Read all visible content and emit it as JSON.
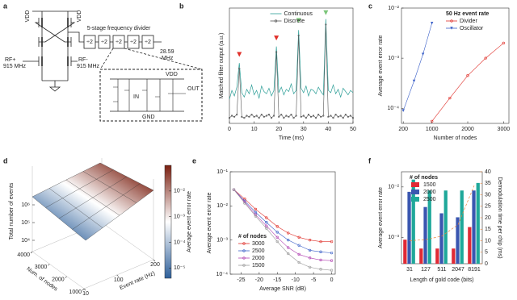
{
  "diagram": {
    "panel_label": "a",
    "vdd": [
      "VDD",
      "VDD"
    ],
    "divider_title": "5-stage frequency divider",
    "stages": [
      "÷2",
      "÷2",
      "÷2",
      "÷2",
      "÷2"
    ],
    "output": [
      "28.59",
      "MHz"
    ],
    "rf_plus": [
      "RF+",
      "915 MHz"
    ],
    "rf_minus": [
      "RF-",
      "915 MHz"
    ],
    "inset": {
      "vdd": "VDD",
      "gnd": "GND",
      "in": "IN",
      "out": "OUT"
    }
  },
  "chart_data": [
    {
      "type": "line",
      "panel_label": "b",
      "xlabel": "Time (ms)",
      "ylabel": "Matched filter output (a.u.)",
      "x": [
        0,
        1,
        2,
        3,
        4,
        5,
        6,
        7,
        8,
        9,
        10,
        11,
        12,
        13,
        14,
        15,
        16,
        17,
        18,
        19,
        20,
        21,
        22,
        23,
        24,
        25,
        26,
        27,
        28,
        29,
        30,
        31,
        32,
        33,
        34,
        35,
        36,
        37,
        38,
        39,
        40,
        41,
        42,
        43,
        44,
        45,
        46,
        47,
        48,
        49,
        50
      ],
      "xlim": [
        0,
        50
      ],
      "xticks": [
        0,
        10,
        20,
        30,
        40,
        50
      ],
      "ylim": [
        0,
        1.05
      ],
      "series": [
        {
          "name": "Continuous",
          "color": "#2a9d96",
          "values": [
            0.22,
            0.3,
            0.25,
            0.33,
            0.55,
            0.28,
            0.24,
            0.31,
            0.27,
            0.35,
            0.26,
            0.3,
            0.23,
            0.34,
            0.29,
            0.27,
            0.32,
            0.25,
            0.3,
            0.7,
            0.28,
            0.33,
            0.26,
            0.31,
            0.29,
            0.36,
            0.27,
            0.3,
            0.85,
            0.32,
            0.28,
            0.34,
            0.25,
            0.31,
            0.3,
            0.27,
            0.33,
            0.29,
            0.26,
            0.95,
            0.3,
            0.28,
            0.35,
            0.27,
            0.31,
            0.24,
            0.32,
            0.29,
            0.26,
            0.3,
            0.28
          ]
        },
        {
          "name": "Discrete",
          "color": "#555555",
          "marker": "o",
          "values": [
            0.05,
            0.07,
            0.06,
            0.08,
            0.5,
            0.06,
            0.05,
            0.07,
            0.06,
            0.08,
            0.06,
            0.07,
            0.05,
            0.08,
            0.06,
            0.07,
            0.08,
            0.05,
            0.07,
            0.65,
            0.06,
            0.08,
            0.05,
            0.07,
            0.06,
            0.08,
            0.05,
            0.07,
            0.8,
            0.06,
            0.07,
            0.05,
            0.08,
            0.06,
            0.07,
            0.05,
            0.08,
            0.06,
            0.07,
            0.9,
            0.06,
            0.07,
            0.05,
            0.08,
            0.06,
            0.07,
            0.05,
            0.08,
            0.06,
            0.07,
            0.05
          ]
        }
      ],
      "markers": [
        {
          "x": 4,
          "y": 0.62,
          "color": "#e0302a"
        },
        {
          "x": 19,
          "y": 0.77,
          "color": "#e0302a"
        },
        {
          "x": 28,
          "y": 0.93,
          "color": "#7cc67a"
        },
        {
          "x": 39,
          "y": 1.0,
          "color": "#7cc67a"
        }
      ],
      "legend": "upper center"
    },
    {
      "type": "line",
      "panel_label": "c",
      "xlabel": "Number of nodes",
      "ylabel": "Average event error rate",
      "xlim": [
        150,
        3150
      ],
      "xticks": [
        200,
        1000,
        2000,
        3000
      ],
      "yscale": "log",
      "ylim": [
        5e-05,
        0.01
      ],
      "yticks": [
        {
          "value": 0.0001,
          "label": "10⁻⁴"
        },
        {
          "value": 0.001,
          "label": "10⁻³"
        },
        {
          "value": 0.01,
          "label": "10⁻²"
        }
      ],
      "series": [
        {
          "name": "Divider",
          "color": "#e0302a",
          "marker": "o",
          "x": [
            1000,
            1500,
            2000,
            2500,
            3000
          ],
          "values": [
            5.5e-05,
            0.00016,
            0.00045,
            0.001,
            0.002
          ]
        },
        {
          "name": "Oscillator",
          "color": "#3a5fc8",
          "marker": "v",
          "x": [
            200,
            500,
            750,
            1000
          ],
          "values": [
            9e-05,
            0.00035,
            0.0012,
            0.005
          ]
        }
      ],
      "legend": {
        "title": "50 Hz event rate",
        "loc": "upper right"
      }
    },
    {
      "type": "surface",
      "panel_label": "d",
      "zlabel": "Total number of events",
      "xlabel": "Num. of nodes",
      "ylabel": "Event rate (Hz)",
      "xlim": [
        1000,
        4000
      ],
      "xticks": [
        1000,
        2000,
        3000,
        4000
      ],
      "ylim": [
        10,
        200
      ],
      "yticks": [
        10,
        100,
        200
      ],
      "zscale": "log",
      "zlim": [
        10000,
        1000000
      ],
      "zticks": [
        {
          "value": 10000,
          "label": "10⁴"
        },
        {
          "value": 100000,
          "label": "10⁵"
        },
        {
          "value": 1000000,
          "label": "10⁶"
        }
      ],
      "colorbar": {
        "label": "Average event error rate",
        "scale": "log",
        "lim": [
          4e-06,
          0.1
        ],
        "ticks": [
          {
            "value": 0.01,
            "label": "10⁻²"
          },
          {
            "value": 0.001,
            "label": "10⁻³"
          },
          {
            "value": 0.0001,
            "label": "10⁻⁴"
          },
          {
            "value": 1e-05,
            "label": "10⁻⁵"
          }
        ],
        "colors": [
          "#2d5f9a",
          "#ffffff",
          "#7a1f10"
        ]
      }
    },
    {
      "type": "line",
      "panel_label": "e",
      "xlabel": "Average SNR (dB)",
      "ylabel": "Average event error rate",
      "x": [
        -27,
        -24,
        -21,
        -18,
        -15,
        -12,
        -9,
        -6,
        -3,
        0
      ],
      "xlim": [
        -28,
        1
      ],
      "xticks": [
        -25,
        -20,
        -15,
        -10,
        -5,
        0
      ],
      "yscale": "log",
      "ylim": [
        0.0001,
        0.1
      ],
      "yticks": [
        {
          "value": 0.0001,
          "label": "10⁻⁴"
        },
        {
          "value": 0.001,
          "label": "10⁻³"
        },
        {
          "value": 0.01,
          "label": "10⁻²"
        },
        {
          "value": 0.1,
          "label": "10⁻¹"
        }
      ],
      "series": [
        {
          "name": "3000",
          "color": "#e0302a",
          "marker": "o",
          "values": [
            0.03,
            0.016,
            0.008,
            0.0045,
            0.0025,
            0.0016,
            0.0012,
            0.001,
            0.0009,
            0.0009
          ]
        },
        {
          "name": "2500",
          "color": "#3a5fc8",
          "marker": "o",
          "values": [
            0.03,
            0.014,
            0.0065,
            0.0033,
            0.0017,
            0.001,
            0.0007,
            0.0005,
            0.00045,
            0.00042
          ]
        },
        {
          "name": "2000",
          "color": "#b040b0",
          "marker": "o",
          "values": [
            0.03,
            0.013,
            0.0055,
            0.0026,
            0.0012,
            0.0006,
            0.00038,
            0.0003,
            0.00026,
            0.00025
          ]
        },
        {
          "name": "1500",
          "color": "#999999",
          "marker": "o",
          "values": [
            0.03,
            0.012,
            0.005,
            0.0022,
            0.0009,
            0.0004,
            0.00022,
            0.00016,
            0.00014,
            0.00013
          ]
        }
      ],
      "legend": {
        "title": "# of nodes",
        "loc": "lower left"
      }
    },
    {
      "type": "bar",
      "panel_label": "f",
      "xlabel": "Length of gold code (bits)",
      "ylabel": "Average event error rate",
      "y2label": "Demodulation time per chip (ms)",
      "categories": [
        "31",
        "127",
        "511",
        "2047",
        "8191"
      ],
      "yscale": "log",
      "ylim": [
        0.0003,
        0.02
      ],
      "yticks": [
        {
          "value": 0.001,
          "label": "10⁻³"
        },
        {
          "value": 0.01,
          "label": "10⁻²"
        }
      ],
      "y2lim": [
        0,
        40
      ],
      "y2ticks": [
        0,
        5,
        10,
        15,
        20,
        25,
        30,
        35,
        40
      ],
      "y2color": "#e8823a",
      "series": [
        {
          "name": "1500",
          "color": "#e02a35",
          "values": [
            0.0009,
            0.0006,
            0.0006,
            0.0006,
            0.0016
          ]
        },
        {
          "name": "2000",
          "color": "#3a56b0",
          "values": [
            0.008,
            0.004,
            0.003,
            0.0025,
            0.0085
          ]
        },
        {
          "name": "2500",
          "color": "#1fa89a",
          "values": [
            0.014,
            0.0085,
            0.0085,
            0.0085,
            0.012
          ]
        },
        {
          "color": "#e8823a",
          "axis": "y2",
          "dash": true,
          "values": [
            10,
            10.5,
            12,
            17,
            34
          ]
        }
      ],
      "legend": {
        "title": "# of nodes",
        "loc": "upper left"
      }
    }
  ]
}
